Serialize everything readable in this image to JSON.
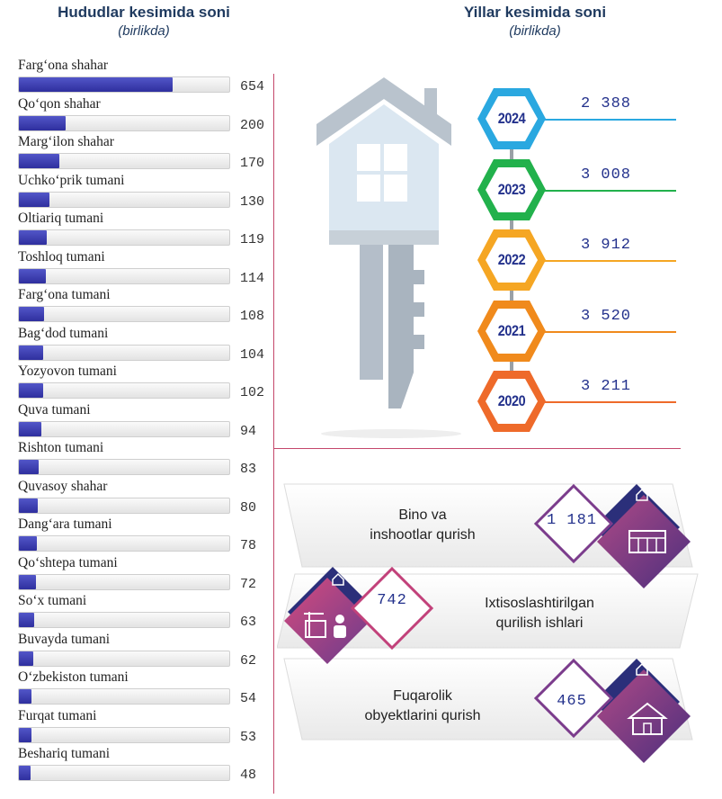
{
  "chart_data": [
    {
      "type": "bar",
      "title": "Hududlar kesimida soni",
      "subtitle": "(birlikda)",
      "categories": [
        "Farg‘ona shahar",
        "Qo‘qon shahar",
        "Marg‘ilon shahar",
        "Uchko‘prik tumani",
        "Oltiariq tumani",
        "Toshloq tumani",
        "Farg‘ona tumani",
        "Bag‘dod tumani",
        "Yozyovon tumani",
        "Quva tumani",
        "Rishton tumani",
        "Quvasoy shahar",
        "Dang‘ara tumani",
        "Qo‘shtepa tumani",
        "So‘x tumani",
        "Buvayda tumani",
        "O‘zbekiston tumani",
        "Furqat tumani",
        "Beshariq tumani"
      ],
      "values": [
        654,
        200,
        170,
        130,
        119,
        114,
        108,
        104,
        102,
        94,
        83,
        80,
        78,
        72,
        63,
        62,
        54,
        53,
        48
      ],
      "bar_color": "#3a3cb0"
    },
    {
      "type": "table",
      "title": "Yillar kesimida soni",
      "subtitle": "(birlikda)",
      "years": [
        "2024",
        "2023",
        "2022",
        "2021",
        "2020"
      ],
      "values": [
        "2 388",
        "3 008",
        "3 912",
        "3 520",
        "3 211"
      ],
      "colors": [
        "#2aa8e0",
        "#22b14c",
        "#f5a623",
        "#f08a1c",
        "#ee6a2a"
      ]
    },
    {
      "type": "table",
      "categories": [
        {
          "line1": "Bino va",
          "line2": "inshootlar qurish",
          "value": "1 181"
        },
        {
          "line1": "Ixtisoslashtirilgan",
          "line2": "qurilish ishlari",
          "value": "742"
        },
        {
          "line1": "Fuqarolik",
          "line2": "obyektlarini qurish",
          "value": "465"
        }
      ],
      "accent_colors": [
        "#7b3c8c",
        "#c2417a",
        "#2b2f7a"
      ]
    }
  ],
  "icons": [
    "house-key-icon",
    "house-icon",
    "building-icon",
    "construction-worker-icon",
    "home-icon"
  ]
}
